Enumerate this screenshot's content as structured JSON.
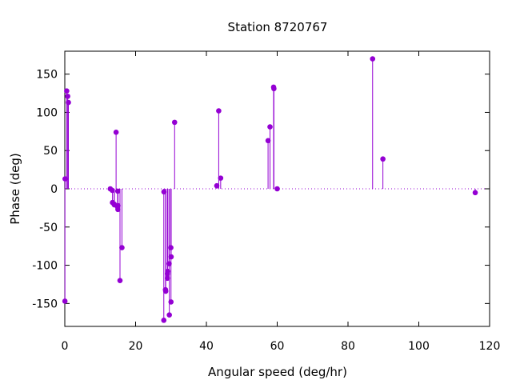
{
  "chart_data": {
    "type": "scatter",
    "title": "Station 8720767",
    "xlabel": "Angular speed (deg/hr)",
    "ylabel": "Phase (deg)",
    "xlim": [
      0,
      120
    ],
    "ylim": [
      -180,
      180
    ],
    "xticks": [
      0,
      20,
      40,
      60,
      80,
      100,
      120
    ],
    "yticks": [
      -150,
      -100,
      -50,
      0,
      50,
      100,
      150
    ],
    "grid": false,
    "zero_line": "dotted",
    "style": "impulses with points",
    "color": "#9400d3",
    "series": [
      {
        "points": [
          [
            0.04,
            -147
          ],
          [
            0.08,
            13
          ],
          [
            0.54,
            128
          ],
          [
            0.82,
            121
          ],
          [
            1.02,
            113
          ],
          [
            12.85,
            0
          ],
          [
            13.4,
            -2
          ],
          [
            13.47,
            -18
          ],
          [
            13.94,
            -20
          ],
          [
            14.0,
            -21
          ],
          [
            14.49,
            74
          ],
          [
            14.92,
            -24
          ],
          [
            14.96,
            -3
          ],
          [
            15.0,
            -27
          ],
          [
            15.04,
            -22
          ],
          [
            15.59,
            -120
          ],
          [
            16.14,
            -77
          ],
          [
            27.97,
            -172
          ],
          [
            28.0,
            -4
          ],
          [
            28.44,
            -132
          ],
          [
            28.51,
            -134
          ],
          [
            28.99,
            -117
          ],
          [
            29.0,
            -111
          ],
          [
            29.08,
            -108
          ],
          [
            29.46,
            -98
          ],
          [
            29.53,
            -165
          ],
          [
            29.96,
            -77
          ],
          [
            30.0,
            -148
          ],
          [
            30.04,
            -89
          ],
          [
            31.02,
            87
          ],
          [
            42.93,
            4
          ],
          [
            43.48,
            102
          ],
          [
            44.03,
            14
          ],
          [
            57.42,
            63
          ],
          [
            57.97,
            81
          ],
          [
            58.98,
            133
          ],
          [
            59.07,
            131
          ],
          [
            60.0,
            0
          ],
          [
            86.95,
            170
          ],
          [
            89.86,
            39
          ],
          [
            115.94,
            -5
          ]
        ]
      }
    ]
  }
}
